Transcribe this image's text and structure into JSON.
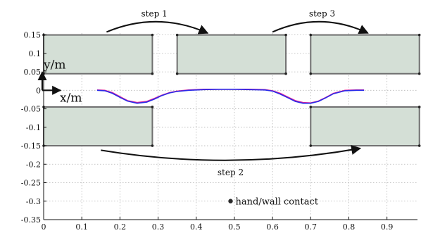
{
  "chart_data": {
    "type": "line",
    "title": "",
    "xlabel": "x/m",
    "ylabel": "y/m",
    "xlim": [
      0,
      0.98
    ],
    "ylim": [
      -0.35,
      0.155
    ],
    "grid": true,
    "x_ticks": [
      0,
      0.1,
      0.2,
      0.3,
      0.4,
      0.5,
      0.6,
      0.7,
      0.8,
      0.9
    ],
    "x_tick_labels": [
      "0",
      "0.1",
      "0.2",
      "0.3",
      "0.4",
      "0.5",
      "0.6",
      "0.7",
      "0.8",
      "0.9"
    ],
    "y_ticks": [
      0.15,
      0.1,
      0.05,
      0,
      -0.05,
      -0.1,
      -0.15,
      -0.2,
      -0.25,
      -0.3,
      -0.35
    ],
    "y_tick_labels": [
      "0.15",
      "0.1",
      "0.05",
      "0",
      "-0.05",
      "-0.1",
      "-0.15",
      "-0.2",
      "-0.25",
      "-0.3",
      "-0.35"
    ],
    "walls": [
      {
        "x": [
          0.0,
          0.285
        ],
        "y": [
          0.045,
          0.15
        ]
      },
      {
        "x": [
          0.35,
          0.635
        ],
        "y": [
          0.045,
          0.15
        ]
      },
      {
        "x": [
          0.7,
          0.985
        ],
        "y": [
          0.045,
          0.15
        ]
      },
      {
        "x": [
          0.0,
          0.285
        ],
        "y": [
          -0.15,
          -0.045
        ]
      },
      {
        "x": [
          0.7,
          0.985
        ],
        "y": [
          -0.15,
          -0.045
        ]
      }
    ],
    "wall_color": "#d4dfd6",
    "wall_edge_color": "#6f6f6f",
    "series": [
      {
        "color": "#e0209a",
        "x": [
          0.14,
          0.16,
          0.18,
          0.2,
          0.22,
          0.245,
          0.27,
          0.29,
          0.31,
          0.33,
          0.35,
          0.38,
          0.42,
          0.46,
          0.5,
          0.54,
          0.58,
          0.6,
          0.62,
          0.64,
          0.66,
          0.68,
          0.7,
          0.72,
          0.74,
          0.76,
          0.79,
          0.82,
          0.84
        ],
        "y": [
          0.001,
          0.0,
          -0.006,
          -0.017,
          -0.028,
          -0.033,
          -0.03,
          -0.022,
          -0.013,
          -0.006,
          -0.002,
          0.001,
          0.003,
          0.003,
          0.003,
          0.003,
          0.002,
          -0.001,
          -0.008,
          -0.018,
          -0.028,
          -0.033,
          -0.034,
          -0.029,
          -0.019,
          -0.008,
          0.0,
          0.001,
          0.001
        ]
      },
      {
        "color": "#2a2ae8",
        "x": [
          0.14,
          0.16,
          0.18,
          0.2,
          0.22,
          0.245,
          0.27,
          0.29,
          0.31,
          0.33,
          0.35,
          0.38,
          0.42,
          0.46,
          0.5,
          0.54,
          0.58,
          0.6,
          0.62,
          0.64,
          0.66,
          0.68,
          0.7,
          0.72,
          0.74,
          0.76,
          0.79,
          0.82,
          0.84
        ],
        "y": [
          0.0,
          -0.001,
          -0.008,
          -0.019,
          -0.029,
          -0.035,
          -0.032,
          -0.024,
          -0.014,
          -0.007,
          -0.003,
          0.0,
          0.002,
          0.003,
          0.003,
          0.002,
          0.001,
          -0.002,
          -0.01,
          -0.02,
          -0.03,
          -0.035,
          -0.035,
          -0.03,
          -0.02,
          -0.009,
          -0.001,
          0.0,
          0.0
        ]
      }
    ],
    "arrows": [
      {
        "label": "step 1",
        "from": [
          0.165,
          0.158
        ],
        "to": [
          0.43,
          0.155
        ],
        "label_at": [
          0.29,
          0.2
        ],
        "bend": "up"
      },
      {
        "label": "step 3",
        "from": [
          0.6,
          0.158
        ],
        "to": [
          0.85,
          0.155
        ],
        "label_at": [
          0.73,
          0.2
        ],
        "bend": "up"
      },
      {
        "label": "step 2",
        "from": [
          0.15,
          -0.162
        ],
        "to": [
          0.83,
          -0.157
        ],
        "label_at": [
          0.49,
          -0.23
        ],
        "bend": "down"
      }
    ],
    "legend": {
      "label": "hand/wall contact",
      "marker": "dot",
      "location": "bottom-center"
    },
    "axis_arrows": {
      "x_label": "x/m",
      "y_label": "y/m"
    }
  }
}
